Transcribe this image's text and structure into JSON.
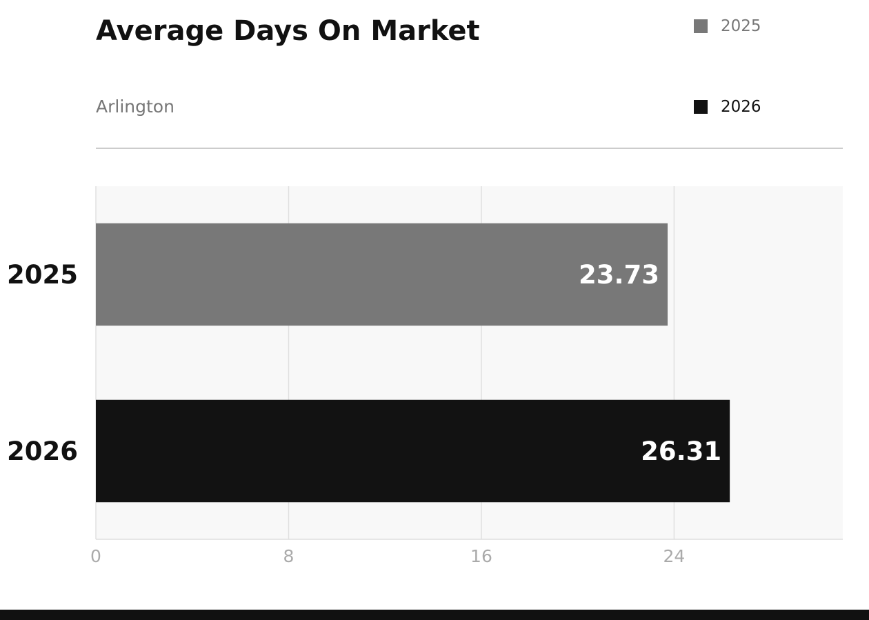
{
  "header": {
    "title": "Average Days On Market",
    "subtitle": "Arlington"
  },
  "legend": [
    {
      "label": "2025",
      "color": "#787878",
      "text_color": "#777777"
    },
    {
      "label": "2026",
      "color": "#121212",
      "text_color": "#111111"
    }
  ],
  "colors": {
    "plot_background": "#f8f8f8",
    "grid": "#e0e0e0",
    "tick_label": "#aaaaaa",
    "bar_label": "#ffffff",
    "category_label": "#111111",
    "footer": "#111111"
  },
  "chart_data": {
    "type": "bar",
    "orientation": "horizontal",
    "title": "Average Days On Market",
    "subtitle": "Arlington",
    "categories": [
      "2025",
      "2026"
    ],
    "values": [
      23.73,
      26.31
    ],
    "value_labels": [
      "23.73",
      "26.31"
    ],
    "bar_colors": [
      "#787878",
      "#121212"
    ],
    "xlim": [
      0,
      31
    ],
    "xticks": [
      0,
      8,
      16,
      24
    ],
    "xlabel": "",
    "ylabel": "",
    "grid": true,
    "legend_position": "top-right"
  }
}
